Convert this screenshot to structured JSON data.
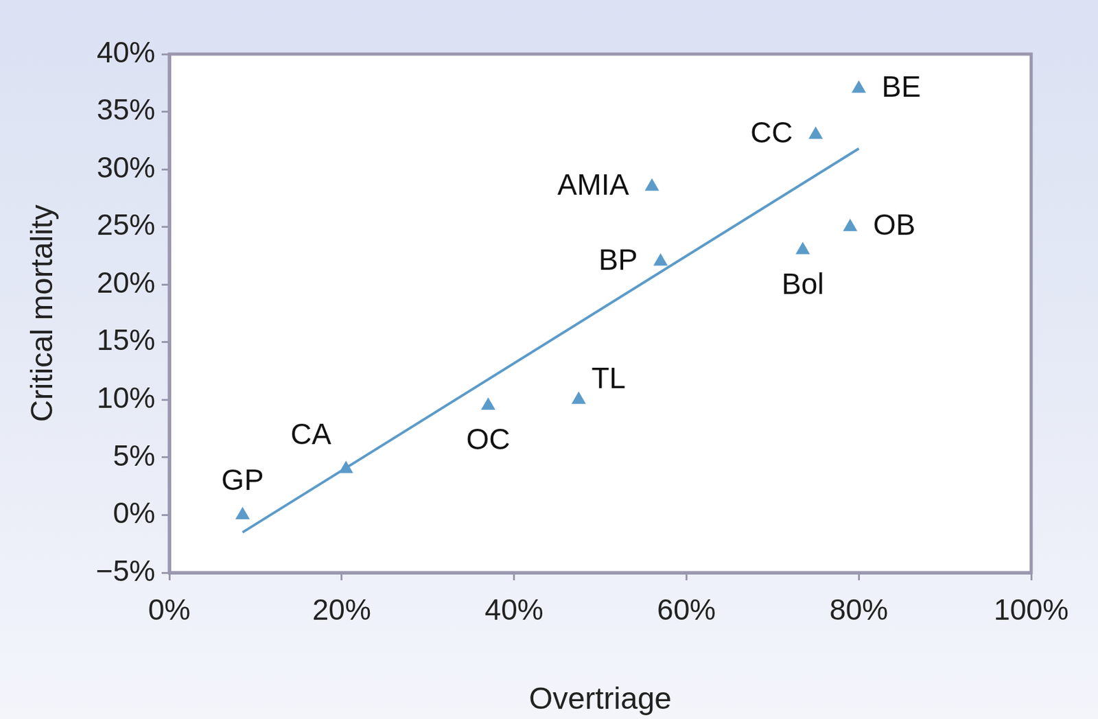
{
  "chart_data": {
    "type": "scatter",
    "x_label": "Overtriage",
    "y_label": "Critical mortality",
    "x": [
      8.5,
      20.5,
      37,
      47.5,
      56,
      57,
      73.5,
      75,
      79,
      80
    ],
    "values": [
      0,
      4,
      9.5,
      10,
      28.5,
      22,
      23,
      33,
      25,
      37
    ],
    "point_labels": [
      "GP",
      "CA",
      "OC",
      "TL",
      "AMIA",
      "BP",
      "Bol",
      "CC",
      "OB",
      "BE"
    ],
    "color": "#5b9bc9",
    "marker": "triangle",
    "trend_line": {
      "x": [
        8.5,
        80
      ],
      "values": [
        -1.5,
        31.8
      ],
      "color": "#5b9bc9"
    },
    "xlim": [
      0,
      100
    ],
    "ylim": [
      -5,
      40
    ],
    "xticks": [
      {
        "value": 0,
        "label": "0%"
      },
      {
        "value": 20,
        "label": "20%"
      },
      {
        "value": 40,
        "label": "40%"
      },
      {
        "value": 60,
        "label": "60%"
      },
      {
        "value": 80,
        "label": "80%"
      },
      {
        "value": 100,
        "label": "100%"
      }
    ],
    "yticks": [
      {
        "value": -5,
        "label": "−5%"
      },
      {
        "value": 0,
        "label": "0%"
      },
      {
        "value": 5,
        "label": "5%"
      },
      {
        "value": 10,
        "label": "10%"
      },
      {
        "value": 15,
        "label": "15%"
      },
      {
        "value": 20,
        "label": "20%"
      },
      {
        "value": 25,
        "label": "25%"
      },
      {
        "value": 30,
        "label": "30%"
      },
      {
        "value": 35,
        "label": "35%"
      },
      {
        "value": 40,
        "label": "40%"
      }
    ],
    "grid": false
  }
}
